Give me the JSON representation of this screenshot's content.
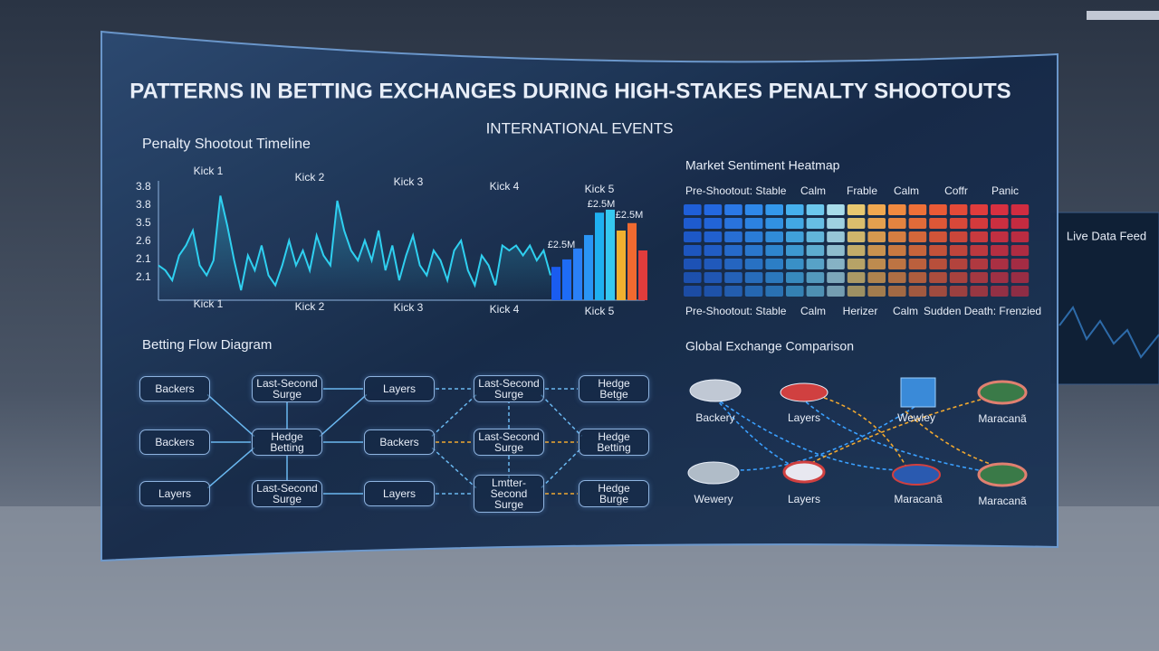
{
  "title": "PATTERNS IN BETTING EXCHANGES DURING HIGH-STAKES PENALTY SHOOTOUTS",
  "subtitle": "INTERNATIONAL EVENTS",
  "chart_data": [
    {
      "type": "line",
      "title": "Penalty Shootout Timeline",
      "kick_labels": [
        "Kick 1",
        "Kick 2",
        "Kick 3",
        "Kick 4",
        "Kick 5"
      ],
      "y_labels": [
        "3.8",
        "3.8",
        "3.5",
        "2.6",
        "2.1",
        "2.1"
      ],
      "ylim": [
        1.8,
        4.2
      ],
      "series": [
        {
          "color": "#2fd0f0",
          "values": [
            2.5,
            2.4,
            2.2,
            2.7,
            2.9,
            3.2,
            2.5,
            2.3,
            2.6,
            3.9,
            3.3,
            2.6,
            2.0,
            2.7,
            2.4,
            2.9,
            2.3,
            2.1,
            2.5,
            3.0,
            2.5,
            2.8,
            2.4,
            3.1,
            2.7,
            2.5,
            3.8,
            3.2,
            2.8,
            2.6,
            3.0,
            2.6,
            3.2,
            2.4,
            2.9,
            2.2,
            2.7,
            3.1,
            2.5,
            2.3,
            2.8,
            2.6,
            2.2,
            2.8,
            3.0,
            2.4,
            2.1,
            2.7,
            2.5,
            2.1,
            2.9,
            2.8,
            2.9,
            2.7,
            2.9,
            2.6,
            2.8,
            2.3
          ]
        }
      ],
      "bars": {
        "values": [
          2.47,
          2.62,
          2.84,
          3.11,
          3.56,
          3.62,
          3.2,
          3.35,
          2.8
        ],
        "colors": [
          "#1a5cf0",
          "#1e6cf5",
          "#2a80f7",
          "#2a95f5",
          "#1fb0f0",
          "#35c8f0",
          "#f0b030",
          "#f06a30",
          "#e03c3c"
        ]
      },
      "annotations": [
        "£2.5M",
        "£2.5M",
        "£2.5M"
      ]
    },
    {
      "type": "heatmap",
      "title": "Market Sentiment Heatmap",
      "top_labels": [
        "Pre-Shootout: Stable",
        "Calm",
        "Frable",
        "Calm",
        "Coffr",
        "Panic"
      ],
      "bottom_labels": [
        "Pre-Shootout: Stable",
        "Calm",
        "Herizer",
        "Calm",
        "Sudden Death: Frenzied"
      ],
      "column_colors": [
        "#1f5fd8",
        "#2368e0",
        "#2a78e6",
        "#2e88ea",
        "#3398ec",
        "#45b0ee",
        "#6cc8ee",
        "#a8dcea",
        "#e8c870",
        "#f0a850",
        "#f08a40",
        "#ee7038",
        "#ea5a36",
        "#e44a38",
        "#e03c3c",
        "#d83040",
        "#d02c40"
      ],
      "rows": 7
    }
  ],
  "flow_diagram": {
    "title": "Betting Flow Diagram",
    "nodes": [
      "Backers",
      "Backers",
      "Layers",
      "Last-Second Surge",
      "Hedge Betting",
      "Last-Second Surge",
      "Layers",
      "Backers",
      "Layers",
      "Last-Second Surge",
      "Last-Second Surge",
      "Lmtter-Second Surge",
      "Hedge Betge",
      "Hedge Betting",
      "Hedge Burge"
    ]
  },
  "exchange_comparison": {
    "title": "Global Exchange Comparison",
    "venues": [
      "Backery",
      "Layers",
      "Wewley",
      "Maracanã",
      "Wewery",
      "Layers",
      "Maracanã",
      "Maracanã"
    ]
  },
  "side_panel": {
    "title": "Live Data Feed"
  }
}
